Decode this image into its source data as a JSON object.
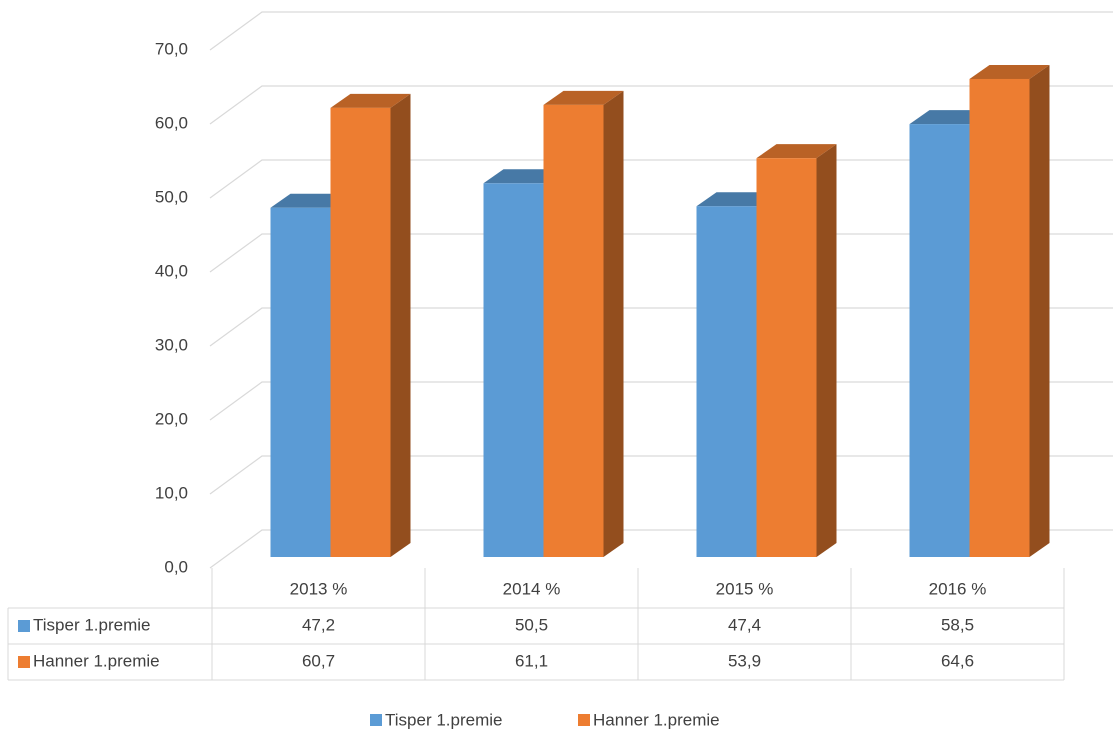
{
  "chart_data": {
    "type": "bar3d",
    "categories": [
      "2013 %",
      "2014 %",
      "2015 %",
      "2016 %"
    ],
    "series": [
      {
        "name": "Tisper 1.premie",
        "color": "#5b9bd5",
        "values": [
          47.2,
          50.5,
          47.4,
          58.5
        ],
        "value_labels": [
          "47,2",
          "50,5",
          "47,4",
          "58,5"
        ]
      },
      {
        "name": "Hanner 1.premie",
        "color": "#ed7d31",
        "values": [
          60.7,
          61.1,
          53.9,
          64.6
        ],
        "value_labels": [
          "60,7",
          "61,1",
          "53,9",
          "64,6"
        ]
      }
    ],
    "ylim": [
      0,
      70
    ],
    "yticks": [
      {
        "value": 0,
        "label": "0,0"
      },
      {
        "value": 10,
        "label": "10,0"
      },
      {
        "value": 20,
        "label": "20,0"
      },
      {
        "value": 30,
        "label": "30,0"
      },
      {
        "value": 40,
        "label": "40,0"
      },
      {
        "value": 50,
        "label": "50,0"
      },
      {
        "value": 60,
        "label": "60,0"
      },
      {
        "value": 70,
        "label": "70,0"
      }
    ],
    "grid": true,
    "legend": "bottom"
  }
}
